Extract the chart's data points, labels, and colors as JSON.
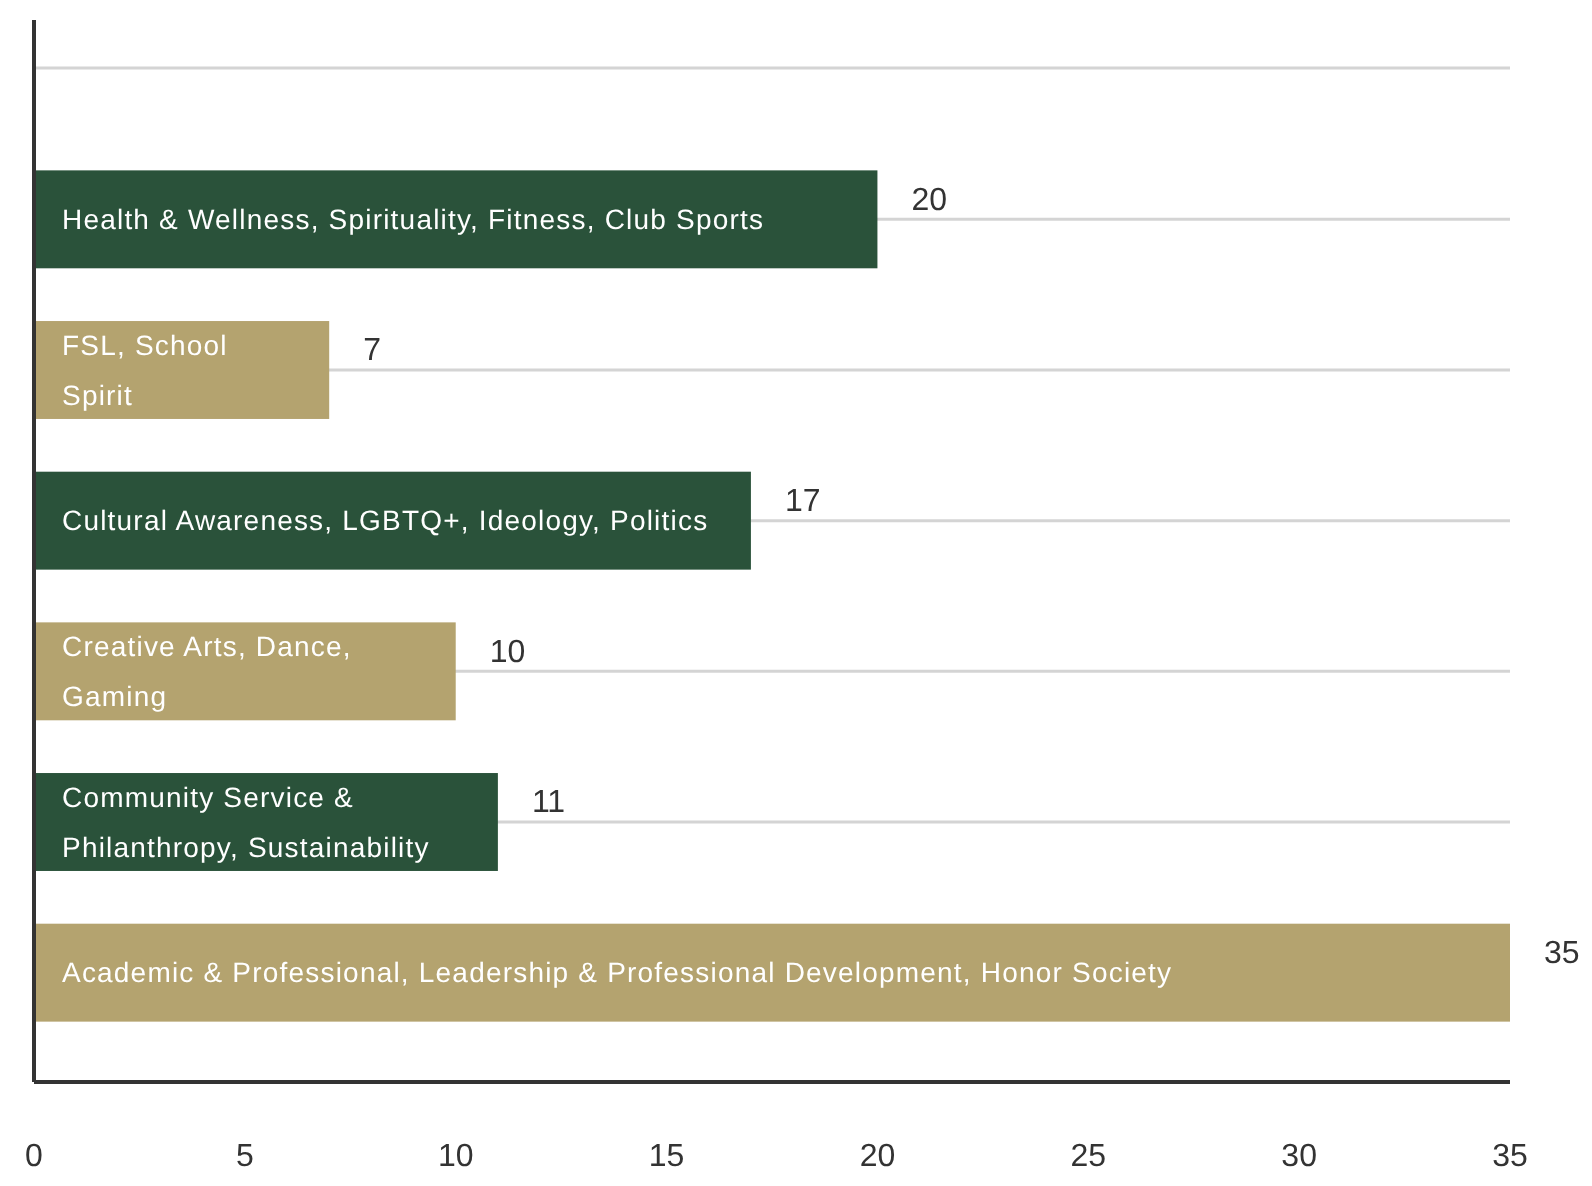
{
  "chart_data": {
    "type": "bar",
    "orientation": "horizontal",
    "categories": [
      "Health & Wellness, Spirituality, Fitness, Club Sports",
      "FSL, School Spirit",
      "Cultural Awareness, LGBTQ+, Ideology, Politics",
      "Creative Arts, Dance, Gaming",
      "Community Service & Philanthropy, Sustainability",
      "Academic & Professional, Leadership & Professional Development, Honor Society"
    ],
    "values": [
      20,
      7,
      17,
      10,
      11,
      35
    ],
    "colors": [
      "#2a523a",
      "#b4a36f",
      "#2a523a",
      "#b4a36f",
      "#2a523a",
      "#b4a36f"
    ],
    "xlim": [
      0,
      35
    ],
    "xticks": [
      0,
      5,
      10,
      15,
      20,
      25,
      30,
      35
    ],
    "grid": "y",
    "data_labels": true
  }
}
